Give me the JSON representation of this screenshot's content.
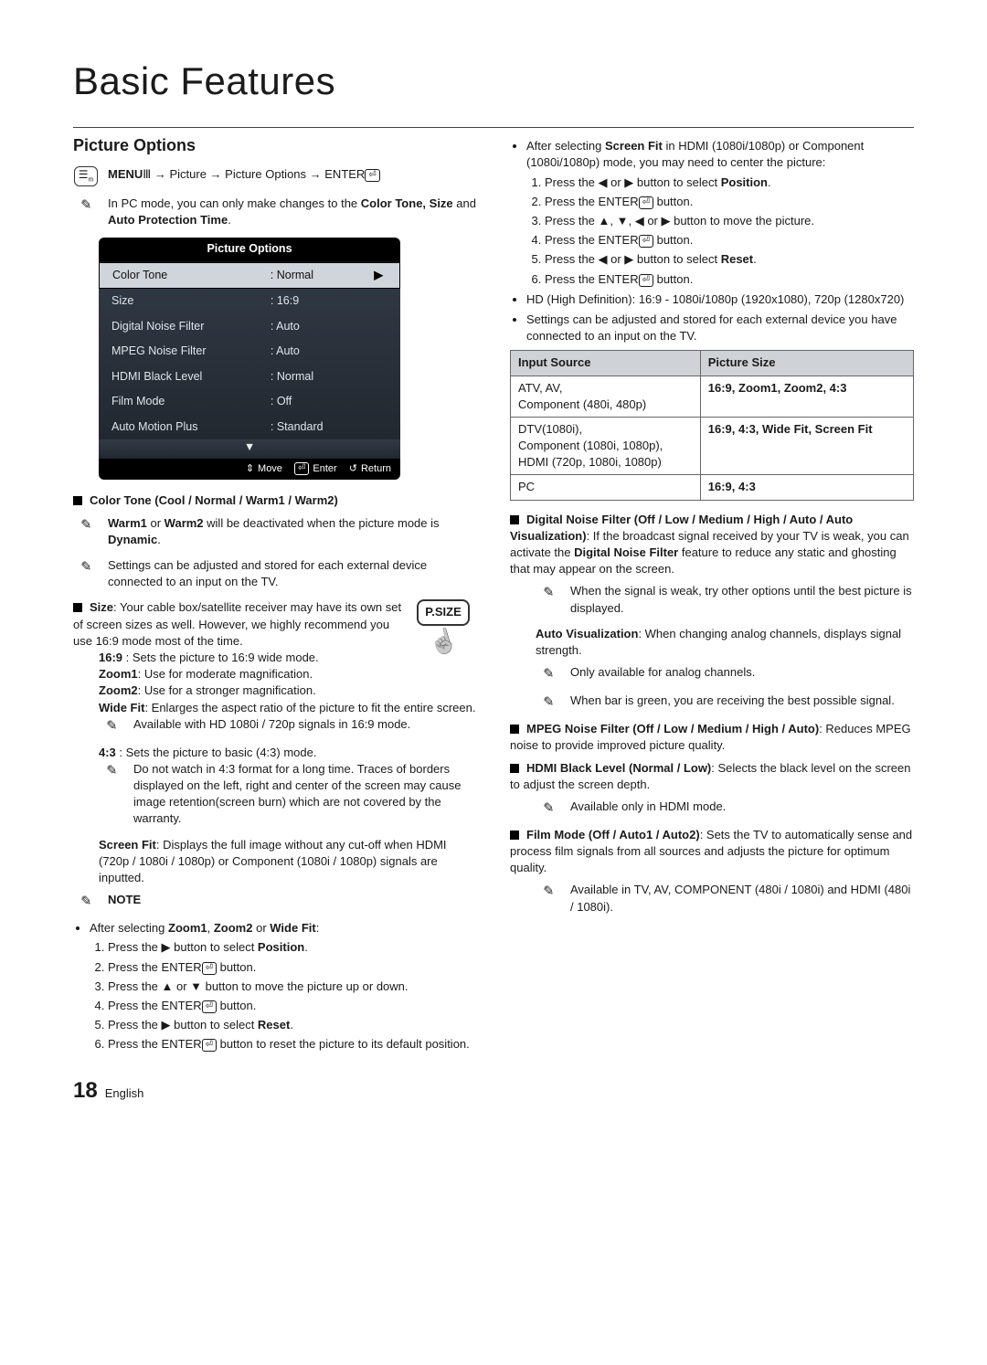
{
  "page": {
    "title": "Basic Features",
    "section": "Picture Options",
    "footer_page": "18",
    "footer_lang": "English"
  },
  "left": {
    "menu_path_prefix": "MENU",
    "menu_path_rest": " → Picture → Picture Options → ENTER",
    "pcmode_note_prefix": "In PC mode, you can only make changes to the ",
    "pcmode_note_bold": "Color Tone, Size",
    "pcmode_note_mid": " and ",
    "pcmode_note_bold2": "Auto Protection Time",
    "pcmode_note_suffix": ".",
    "osd": {
      "title": "Picture Options",
      "rows": [
        {
          "label": "Color Tone",
          "value": ": Normal",
          "selected": true,
          "arrow": "▶"
        },
        {
          "label": "Size",
          "value": ": 16:9"
        },
        {
          "label": "Digital Noise Filter",
          "value": ": Auto"
        },
        {
          "label": "MPEG Noise Filter",
          "value": ": Auto"
        },
        {
          "label": "HDMI Black Level",
          "value": ": Normal"
        },
        {
          "label": "Film Mode",
          "value": ": Off"
        },
        {
          "label": "Auto Motion Plus",
          "value": ": Standard"
        }
      ],
      "caret": "▼",
      "footer_move": "Move",
      "footer_enter": "Enter",
      "footer_return": "Return"
    },
    "color_tone_heading": "Color Tone (Cool / Normal / Warm1 / Warm2)",
    "warm_note_bold1": "Warm1",
    "warm_note_or": " or ",
    "warm_note_bold2": "Warm2",
    "warm_note_rest": " will be deactivated when the picture mode is ",
    "warm_note_dynamic": "Dynamic",
    "warm_note_period": ".",
    "settings_note": "Settings can be adjusted and stored for each external device connected to an input on the TV.",
    "size_bold": "Size",
    "size_rest": ": Your cable box/satellite receiver may have its own set of screen sizes as well. However, we highly recommend you use 16:9 mode most of the time.",
    "psize_label": "P.SIZE",
    "s169_bold": "16:9",
    "s169_rest": " : Sets the picture to 16:9 wide mode.",
    "zoom1_bold": "Zoom1",
    "zoom1_rest": ": Use for moderate magnification.",
    "zoom2_bold": "Zoom2",
    "zoom2_rest": ": Use for a stronger magnification.",
    "widefit_bold": "Wide Fit",
    "widefit_rest": ": Enlarges the aspect ratio of the picture to fit the entire screen.",
    "widefit_note": "Available with HD 1080i / 720p signals in 16:9 mode.",
    "r43_bold": "4:3",
    "r43_rest": " : Sets the picture to basic (4:3) mode.",
    "r43_note": "Do not watch in 4:3 format for a long time. Traces of borders displayed on the left, right and center of the screen may cause image retention(screen burn) which are not covered by the warranty.",
    "screenfit_bold": "Screen Fit",
    "screenfit_rest": ": Displays the full image without any cut-off when HDMI (720p / 1080i / 1080p) or Component (1080i / 1080p) signals are inputted.",
    "note_heading": "NOTE",
    "zoom_sel_prefix": "After selecting ",
    "zoom_sel_b1": "Zoom1",
    "zoom_sel_c1": ", ",
    "zoom_sel_b2": "Zoom2",
    "zoom_sel_or": " or ",
    "zoom_sel_b3": "Wide Fit",
    "zoom_sel_suffix": ":",
    "zoom_steps": {
      "s1a": "Press the ▶ button to select ",
      "s1b": "Position",
      "s1c": ".",
      "s2": "Press the ENTER",
      "s2b": " button.",
      "s3": "Press the ▲ or ▼ button to move the picture up or down.",
      "s4": "Press the ENTER",
      "s4b": " button.",
      "s5a": "Press the ▶ button to select ",
      "s5b": "Reset",
      "s5c": ".",
      "s6": "Press the ENTER",
      "s6b": " button to reset the picture to its default position."
    }
  },
  "right": {
    "fit_sel_prefix": "After selecting ",
    "fit_sel_b": "Screen Fit",
    "fit_sel_rest": " in HDMI (1080i/1080p) or Component (1080i/1080p) mode, you may need to center the picture:",
    "fit_steps": {
      "s1a": "Press the ◀ or ▶ button to select ",
      "s1b": "Position",
      "s1c": ".",
      "s2": "Press the ENTER",
      "s2b": " button.",
      "s3": "Press the ▲, ▼, ◀ or ▶ button to move the picture.",
      "s4": "Press the ENTER",
      "s4b": " button.",
      "s5a": "Press the ◀ or ▶ button to select ",
      "s5b": "Reset",
      "s5c": ".",
      "s6": "Press the ENTER",
      "s6b": " button."
    },
    "hd_line": "HD (High Definition): 16:9 - 1080i/1080p (1920x1080), 720p (1280x720)",
    "ext_settings": "Settings can be adjusted and stored for each external device you have connected to an input on the TV.",
    "table": {
      "head_input": "Input Source",
      "head_size": "Picture Size",
      "r1a": "ATV, AV,\nComponent (480i, 480p)",
      "r1b": "16:9, Zoom1, Zoom2, 4:3",
      "r2a": "DTV(1080i),\nComponent (1080i, 1080p),\nHDMI (720p, 1080i, 1080p)",
      "r2b": "16:9, 4:3, Wide Fit, Screen Fit",
      "r3a": "PC",
      "r3b": "16:9, 4:3"
    },
    "dnf_bold": "Digital Noise Filter (Off / Low / Medium / High / Auto / Auto Visualization)",
    "dnf_rest1": ": If the broadcast signal received by your TV is weak, you can activate the ",
    "dnf_rest_bold": "Digital Noise Filter",
    "dnf_rest2": " feature to reduce any static and ghosting that may appear on the screen.",
    "dnf_note": "When the signal is weak, try other options until the best picture is displayed.",
    "av_bold": "Auto Visualization",
    "av_rest": ": When changing analog channels, displays signal strength.",
    "av_n1": "Only available for analog channels.",
    "av_n2": "When bar is green, you are receiving the best possible signal.",
    "mpeg_bold": "MPEG Noise Filter (Off / Low / Medium / High / Auto)",
    "mpeg_rest": ": Reduces MPEG noise to provide improved picture quality.",
    "hdmi_bold": "HDMI Black Level (Normal / Low)",
    "hdmi_rest": ": Selects the black level on the screen to adjust the screen depth.",
    "hdmi_note": "Available only in HDMI mode.",
    "film_bold": "Film Mode (Off / Auto1 / Auto2)",
    "film_rest": ": Sets the TV to automatically sense and process film signals from all sources and adjusts the picture for optimum quality.",
    "film_note": "Available in TV, AV, COMPONENT (480i / 1080i) and HDMI (480i / 1080i)."
  }
}
